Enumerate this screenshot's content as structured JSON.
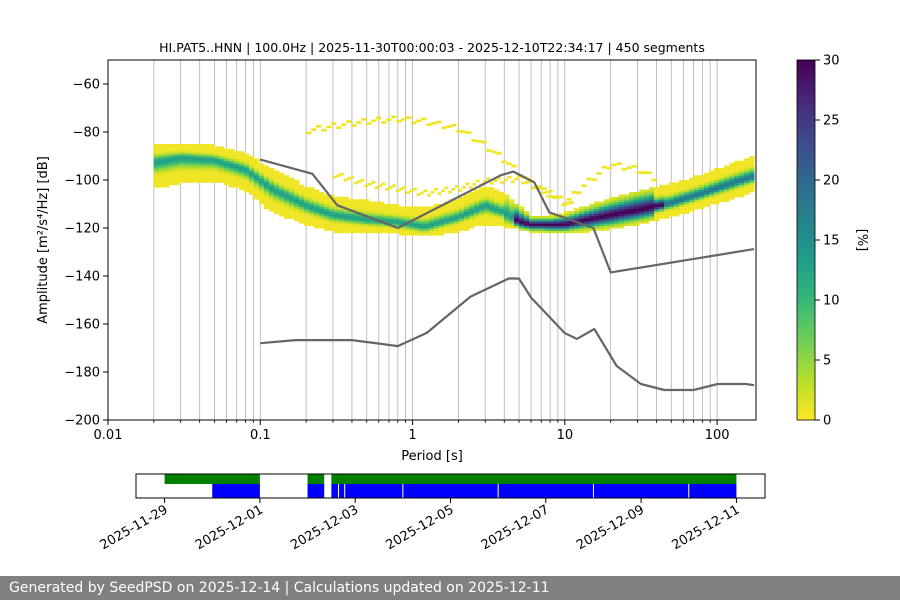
{
  "chart_data": [
    {
      "type": "heatmap",
      "title": "HI.PAT5..HNN | 100.0Hz | 2025-11-30T00:00:03 - 2025-12-10T22:34:17 | 450 segments",
      "xlabel": "Period [s]",
      "ylabel": "Amplitude [m²/s⁴/Hz] [dB]",
      "xscale": "log",
      "xlim": [
        0.01,
        180
      ],
      "ylim": [
        -200,
        -50
      ],
      "xticks": [
        0.01,
        0.1,
        1,
        10,
        100
      ],
      "xtick_labels": [
        "0.01",
        "0.1",
        "1",
        "10",
        "100"
      ],
      "yticks": [
        -200,
        -180,
        -160,
        -140,
        -120,
        -100,
        -80,
        -60
      ],
      "ytick_labels": [
        "−200",
        "−180",
        "−160",
        "−140",
        "−120",
        "−100",
        "−80",
        "−60"
      ],
      "grid": true,
      "colorbar": {
        "label": "[%]",
        "range": [
          0,
          30
        ],
        "ticks": [
          0,
          5,
          10,
          15,
          20,
          25,
          30
        ],
        "tick_labels": [
          "0",
          "5",
          "10",
          "15",
          "20",
          "25",
          "30"
        ],
        "colormap": [
          "#fde725",
          "#b5de2b",
          "#6ece58",
          "#35b779",
          "#1f9e89",
          "#26828e",
          "#31688e",
          "#3e4989",
          "#482878",
          "#440154"
        ]
      },
      "psd_mode": {
        "periods": [
          0.02,
          0.03,
          0.05,
          0.08,
          0.12,
          0.2,
          0.3,
          0.5,
          0.8,
          1.2,
          2,
          3,
          4,
          5,
          6,
          8,
          10,
          14,
          20,
          30,
          50,
          80,
          120,
          175
        ],
        "values": [
          -93,
          -91,
          -92,
          -96,
          -104,
          -111,
          -115,
          -117,
          -118,
          -120,
          -116,
          -111,
          -114,
          -118,
          -119,
          -119,
          -119,
          -117,
          -115,
          -113,
          -110,
          -106,
          -102,
          -99
        ]
      },
      "psd_spread": {
        "upper": [
          -86,
          -86,
          -87,
          -90,
          -97,
          -104,
          -108,
          -110,
          -112,
          -113,
          -109,
          -104,
          -107,
          -112,
          -116,
          -116,
          -115,
          -112,
          -109,
          -106,
          -103,
          -99,
          -95,
          -91
        ],
        "lower": [
          -103,
          -101,
          -100,
          -104,
          -113,
          -118,
          -121,
          -122,
          -122,
          -123,
          -121,
          -118,
          -119,
          -120,
          -121,
          -122,
          -122,
          -121,
          -120,
          -118,
          -115,
          -111,
          -108,
          -104
        ]
      },
      "psd_outliers": {
        "high": {
          "periods": [
            0.2,
            0.3,
            0.5,
            0.8,
            1.2,
            2,
            3,
            4,
            6,
            10,
            15,
            20,
            30,
            40
          ],
          "values": [
            -80,
            -78,
            -76,
            -75,
            -76,
            -79,
            -86,
            -92,
            -102,
            -110,
            -100,
            -94,
            -96,
            -100
          ]
        },
        "middle": {
          "periods": [
            0.3,
            0.5,
            0.8,
            1.2,
            2,
            3,
            5,
            8,
            12
          ],
          "values": [
            -98,
            -102,
            -104,
            -106,
            -104,
            -101,
            -100,
            -106,
            -112
          ]
        }
      },
      "model_curves": [
        {
          "name": "high-noise-model",
          "periods": [
            0.1,
            0.22,
            0.32,
            0.8,
            3.8,
            4.6,
            6.3,
            7.9,
            15.4,
            20,
            175
          ],
          "values": [
            -91.5,
            -97.4,
            -110.5,
            -120,
            -98,
            -96.5,
            -101,
            -113.5,
            -120,
            -138.5,
            -128.8
          ]
        },
        {
          "name": "low-noise-model",
          "periods": [
            0.1,
            0.17,
            0.4,
            0.8,
            1.24,
            2.4,
            4.3,
            5,
            6,
            10,
            12,
            15.6,
            21.9,
            31.6,
            45,
            70,
            101,
            154,
            175
          ],
          "values": [
            -168,
            -166.7,
            -166.7,
            -169.2,
            -163.7,
            -148.6,
            -141,
            -141.1,
            -149,
            -163.8,
            -166.2,
            -162.1,
            -177.5,
            -185,
            -187.5,
            -187.5,
            -185,
            -185,
            -185.5
          ]
        }
      ]
    },
    {
      "type": "timeline",
      "xtick_labels": [
        "2025-11-29",
        "2025-12-01",
        "2025-12-03",
        "2025-12-05",
        "2025-12-07",
        "2025-12-09",
        "2025-12-11"
      ],
      "xtick_days": [
        0,
        2,
        4,
        6,
        8,
        10,
        12
      ],
      "xlim_days": [
        -0.6,
        12.6
      ],
      "colors": {
        "top": "#008000",
        "bottom": "#0000ff"
      },
      "top_segments": [
        [
          0,
          2
        ],
        [
          3.0,
          3.35
        ],
        [
          3.5,
          12.0
        ]
      ],
      "bottom_segments": [
        [
          1.0,
          2
        ],
        [
          3.0,
          3.35
        ],
        [
          3.5,
          12.0
        ]
      ],
      "gap_lines_days": [
        3.65,
        3.78,
        5.0,
        7.0,
        9.0,
        11.0
      ]
    }
  ],
  "footer": "Generated by SeedPSD on 2025-12-14 | Calculations updated on 2025-12-11"
}
